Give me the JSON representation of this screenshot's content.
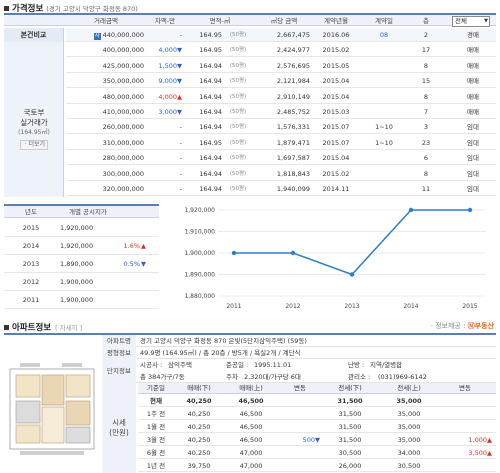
{
  "price_section": {
    "title": "가격정보",
    "address": "(경기 고양시 덕양구 화정동 870)",
    "headers": [
      "거래금액",
      "차액-만",
      "면적-㎡",
      "㎡당 금액",
      "계약년월",
      "계약일",
      "층",
      "전체"
    ],
    "base_label": "본건비교",
    "base_badge": "자",
    "side_label_1": "국토부",
    "side_label_2": "실거래가",
    "side_label_3": "(164.95㎡)",
    "side_btn": "ㆍ더보기",
    "rows": [
      {
        "price": "440,000,000",
        "diff": "-",
        "diff_color": "",
        "area": "164.95",
        "area_unit": "(50평)",
        "per_m2": "2,667,475",
        "ym": "2016.06",
        "day": "08",
        "floor": "2",
        "type": "경매"
      },
      {
        "price": "400,000,000",
        "diff": "4,000",
        "diff_color": "blue",
        "arrow": "▼",
        "area": "164.95",
        "area_unit": "(50평)",
        "per_m2": "2,424,977",
        "ym": "2015.02",
        "day": "",
        "floor": "17",
        "type": "매매"
      },
      {
        "price": "425,000,000",
        "diff": "1,500",
        "diff_color": "blue",
        "arrow": "▼",
        "area": "164.94",
        "area_unit": "(50평)",
        "per_m2": "2,576,695",
        "ym": "2015.05",
        "day": "",
        "floor": "8",
        "type": "매매"
      },
      {
        "price": "350,000,000",
        "diff": "9,000",
        "diff_color": "blue",
        "arrow": "▼",
        "area": "164.94",
        "area_unit": "(50평)",
        "per_m2": "2,121,984",
        "ym": "2015.04",
        "day": "",
        "floor": "15",
        "type": "매매"
      },
      {
        "price": "480,000,000",
        "diff": "4,000",
        "diff_color": "red",
        "arrow": "▲",
        "area": "164.94",
        "area_unit": "(50평)",
        "per_m2": "2,910,149",
        "ym": "2015.04",
        "day": "",
        "floor": "8",
        "type": "매매"
      },
      {
        "price": "410,000,000",
        "diff": "3,000",
        "diff_color": "blue",
        "arrow": "▼",
        "area": "164.94",
        "area_unit": "(50평)",
        "per_m2": "2,485,752",
        "ym": "2015.03",
        "day": "",
        "floor": "7",
        "type": "매매"
      },
      {
        "price": "260,000,000",
        "diff": "-",
        "diff_color": "",
        "area": "164.94",
        "area_unit": "(50평)",
        "per_m2": "1,576,331",
        "ym": "2015.07",
        "day": "1~10",
        "floor": "3",
        "type": "임대"
      },
      {
        "price": "310,000,000",
        "diff": "-",
        "diff_color": "",
        "area": "164.95",
        "area_unit": "(50평)",
        "per_m2": "1,879,471",
        "ym": "2015.07",
        "day": "1~10",
        "floor": "23",
        "type": "임대"
      },
      {
        "price": "280,000,000",
        "diff": "-",
        "diff_color": "",
        "area": "164.94",
        "area_unit": "(50평)",
        "per_m2": "1,697,587",
        "ym": "2015.04",
        "day": "",
        "floor": "6",
        "type": "임대"
      },
      {
        "price": "300,000,000",
        "diff": "-",
        "diff_color": "",
        "area": "164.94",
        "area_unit": "(50평)",
        "per_m2": "1,818,843",
        "ym": "2015.02",
        "day": "",
        "floor": "8",
        "type": "임대"
      },
      {
        "price": "320,000,000",
        "diff": "-",
        "diff_color": "",
        "area": "164.94",
        "area_unit": "(50평)",
        "per_m2": "1,940,099",
        "ym": "2014.11",
        "day": "",
        "floor": "11",
        "type": "임대"
      }
    ]
  },
  "gongsi": {
    "headers": [
      "년도",
      "개별 공시지가"
    ],
    "rows": [
      {
        "year": "2015",
        "value": "1,920,000",
        "change": "",
        "arrow": "",
        "color": ""
      },
      {
        "year": "2014",
        "value": "1,920,000",
        "change": "1.6%",
        "arrow": "▲",
        "color": "red"
      },
      {
        "year": "2013",
        "value": "1,890,000",
        "change": "0.5%",
        "arrow": "▼",
        "color": "blue"
      },
      {
        "year": "2012",
        "value": "1,900,000",
        "change": "",
        "arrow": "",
        "color": ""
      },
      {
        "year": "2011",
        "value": "1,900,000",
        "change": "",
        "arrow": "",
        "color": ""
      }
    ]
  },
  "chart_data": {
    "type": "line",
    "categories": [
      "2011",
      "2012",
      "2013",
      "2014",
      "2015"
    ],
    "values": [
      1900000,
      1900000,
      1890000,
      1920000,
      1920000
    ],
    "y_ticks": [
      "1,920,000",
      "1,910,000",
      "1,900,000",
      "1,890,000",
      "1,880,000"
    ],
    "ylim": [
      1880000,
      1920000
    ],
    "line_color": "#2a7fc8",
    "grid": true
  },
  "apt_section": {
    "title": "아파트정보",
    "more": "[ 자세히 ]",
    "brand_pre": "ㆍ정보제공 : ",
    "brand": "Ⓝ부동산",
    "apt_name_label": "아파트명",
    "apt_name": "경기 고양시 덕양구 화정동 870 은빛(5단지삼익주택) (59동)",
    "pyeong_label": "평형정보",
    "pyeong": "49.9평 (164.95㎡) / 총 20층 / 방5개 / 욕실2개 / 계단식",
    "complex_label": "단지정보",
    "builder_label": "시공사 :",
    "builder": "삼익주택",
    "completed_label": "준공일 :",
    "completed": "1995.11.01",
    "heating_label": "난방 :",
    "heating": "지역/열병합",
    "households_label": "총 384가구/7동",
    "parking_label": "주차",
    "parking": "2,320대/가구당 6대",
    "office_label": "관리소 :",
    "office": "(031)969-6142",
    "market_label_1": "시세",
    "market_label_2": "(만원)",
    "market_headers": [
      "기준일",
      "매매(下)",
      "매매(上)",
      "변동",
      "전세(下)",
      "전세(上)",
      "변동"
    ],
    "market_rows": [
      {
        "date": "현재",
        "s_lo": "40,250",
        "s_hi": "46,500",
        "s_chg": "",
        "s_color": "",
        "j_lo": "31,500",
        "j_hi": "35,000",
        "j_chg": "",
        "j_color": "",
        "bold": true
      },
      {
        "date": "1주 전",
        "s_lo": "40,250",
        "s_hi": "46,500",
        "s_chg": "",
        "s_color": "",
        "j_lo": "31,500",
        "j_hi": "35,000",
        "j_chg": "",
        "j_color": ""
      },
      {
        "date": "1월 전",
        "s_lo": "40,250",
        "s_hi": "46,500",
        "s_chg": "",
        "s_color": "",
        "j_lo": "31,500",
        "j_hi": "35,000",
        "j_chg": "",
        "j_color": ""
      },
      {
        "date": "3월 전",
        "s_lo": "40,250",
        "s_hi": "46,500",
        "s_chg": "500▼",
        "s_color": "blue",
        "j_lo": "31,500",
        "j_hi": "35,000",
        "j_chg": "1,000▲",
        "j_color": "red"
      },
      {
        "date": "6월 전",
        "s_lo": "40,250",
        "s_hi": "47,000",
        "s_chg": "",
        "s_color": "",
        "j_lo": "30,500",
        "j_hi": "34,000",
        "j_chg": "3,500▲",
        "j_color": "red"
      },
      {
        "date": "1년 전",
        "s_lo": "39,750",
        "s_hi": "47,000",
        "s_chg": "",
        "s_color": "",
        "j_lo": "26,000",
        "j_hi": "30,500",
        "j_chg": "",
        "j_color": ""
      }
    ]
  }
}
